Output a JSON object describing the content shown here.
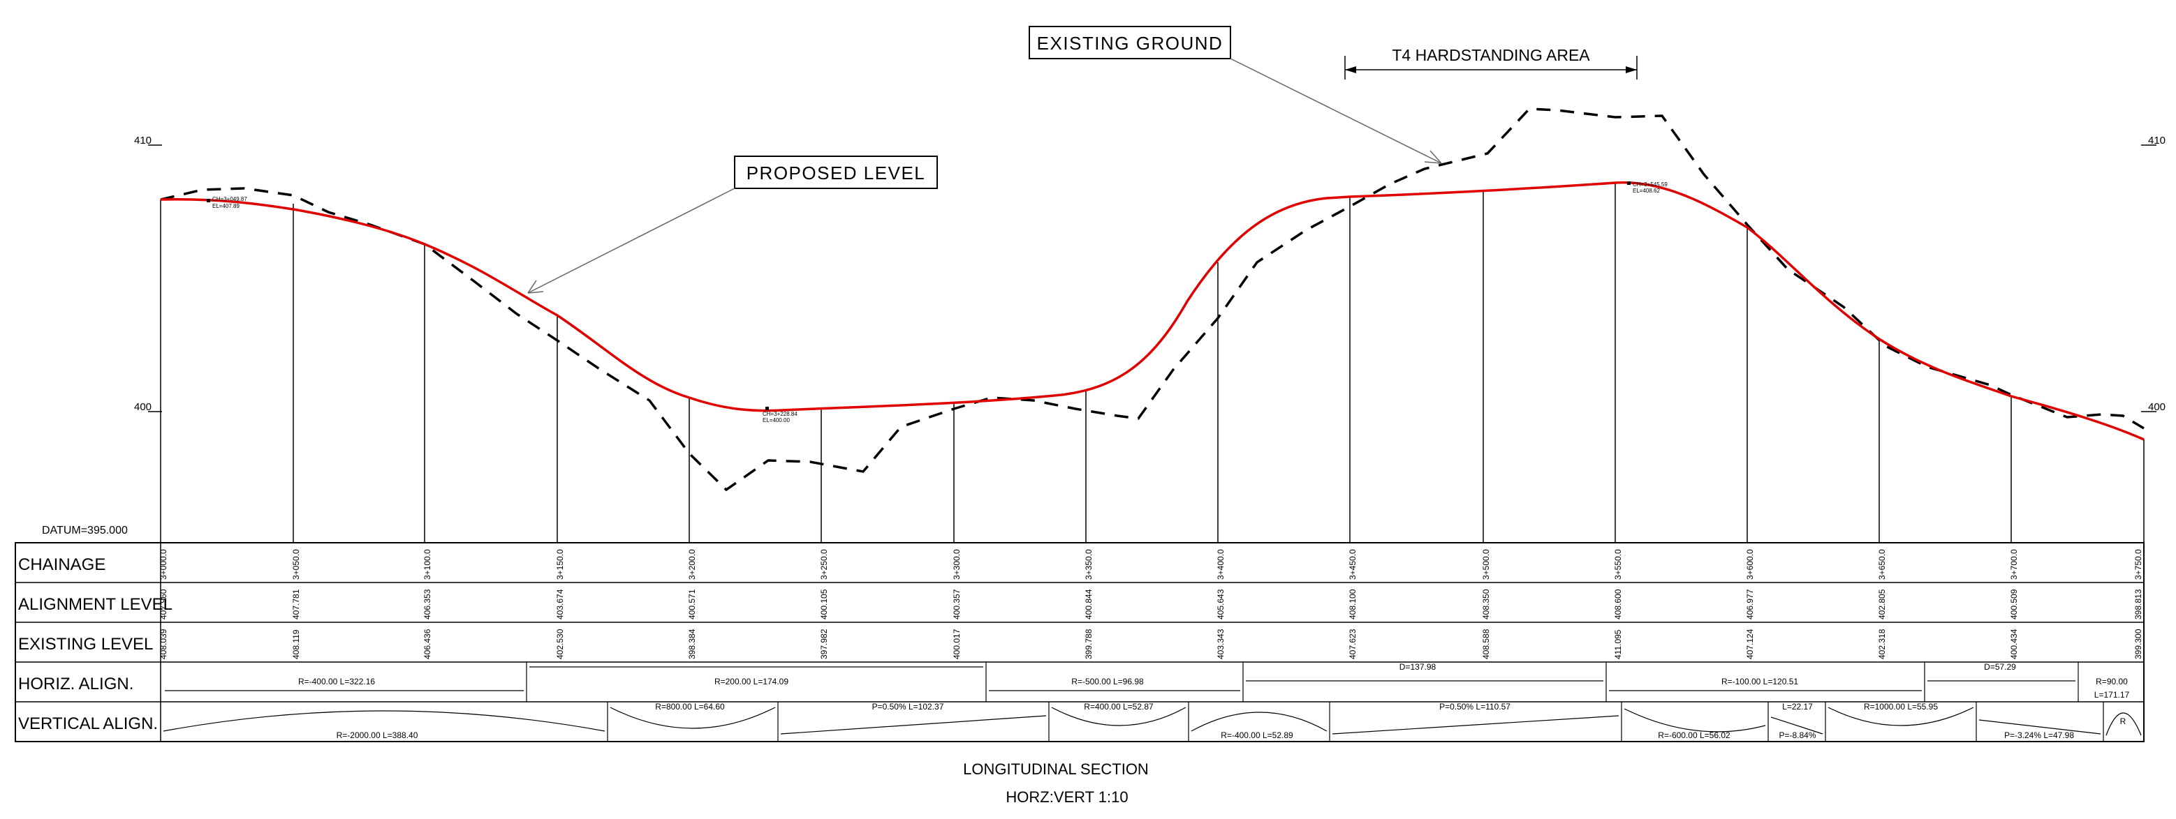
{
  "labels": {
    "existing_ground": "EXISTING GROUND",
    "proposed_level": "PROPOSED LEVEL",
    "hardstanding": "T4 HARDSTANDING AREA",
    "datum": "DATUM=395.000",
    "caption_title": "LONGITUDINAL SECTION",
    "caption_scale": "HORZ:VERT 1:10",
    "y_left_410": "410",
    "y_left_400": "400",
    "y_right_410": "410",
    "y_right_400": "400",
    "ip1_a": "CH=3+049.87",
    "ip1_b": "EL=407.89",
    "ip2_a": "CH=3+228.84",
    "ip2_b": "EL=400.00",
    "ip3_a": "CH=3+545.59",
    "ip3_b": "EL=408.62"
  },
  "rows": {
    "chainage": "CHAINAGE",
    "alignment": "ALIGNMENT LEVEL",
    "existing": "EXISTING LEVEL",
    "horiz": "HORIZ. ALIGN.",
    "vertical": "VERTICAL ALIGN."
  },
  "chainages": [
    "3+000.0",
    "3+050.0",
    "3+100.0",
    "3+150.0",
    "3+200.0",
    "3+250.0",
    "3+300.0",
    "3+350.0",
    "3+400.0",
    "3+450.0",
    "3+500.0",
    "3+550.0",
    "3+600.0",
    "3+650.0",
    "3+700.0",
    "3+750.0"
  ],
  "alignment_levels": [
    "407.960",
    "407.781",
    "406.353",
    "403.674",
    "400.571",
    "400.105",
    "400.357",
    "400.844",
    "405.643",
    "408.100",
    "408.350",
    "408.600",
    "406.977",
    "402.805",
    "400.509",
    "398.813"
  ],
  "existing_levels": [
    "408.039",
    "408.119",
    "406.436",
    "402.530",
    "398.384",
    "397.982",
    "400.017",
    "399.788",
    "403.343",
    "407.623",
    "408.588",
    "411.095",
    "407.124",
    "402.318",
    "400.434",
    "399.300"
  ],
  "horiz_align": [
    {
      "text": "R=-400.00  L=322.16"
    },
    {
      "text": "R=200.00  L=174.09"
    },
    {
      "text": "R=-500.00  L=96.98"
    },
    {
      "text": "D=137.98"
    },
    {
      "text": "R=-100.00  L=120.51"
    },
    {
      "text": "D=57.29"
    },
    {
      "text": "R=90.00"
    },
    {
      "text": "L=171.17"
    }
  ],
  "vertical_align": [
    {
      "text": "R=-2000.00  L=388.40"
    },
    {
      "text": "R=800.00  L=64.60"
    },
    {
      "text": "P=0.50%  L=102.37"
    },
    {
      "text": "R=400.00  L=52.87"
    },
    {
      "text": "R=-400.00  L=52.89"
    },
    {
      "text": "P=0.50%  L=110.57"
    },
    {
      "text": "R=-600.00  L=56.02"
    },
    {
      "text": "L=22.17"
    },
    {
      "text": "P=-8.84%"
    },
    {
      "text": "R=1000.00  L=55.95"
    },
    {
      "text": "P=-3.24%  L=47.98"
    },
    {
      "text": "R"
    }
  ],
  "colors": {
    "proposed": "#e00000",
    "existing": "#000000",
    "grid": "#000000",
    "leader": "#666666"
  }
}
